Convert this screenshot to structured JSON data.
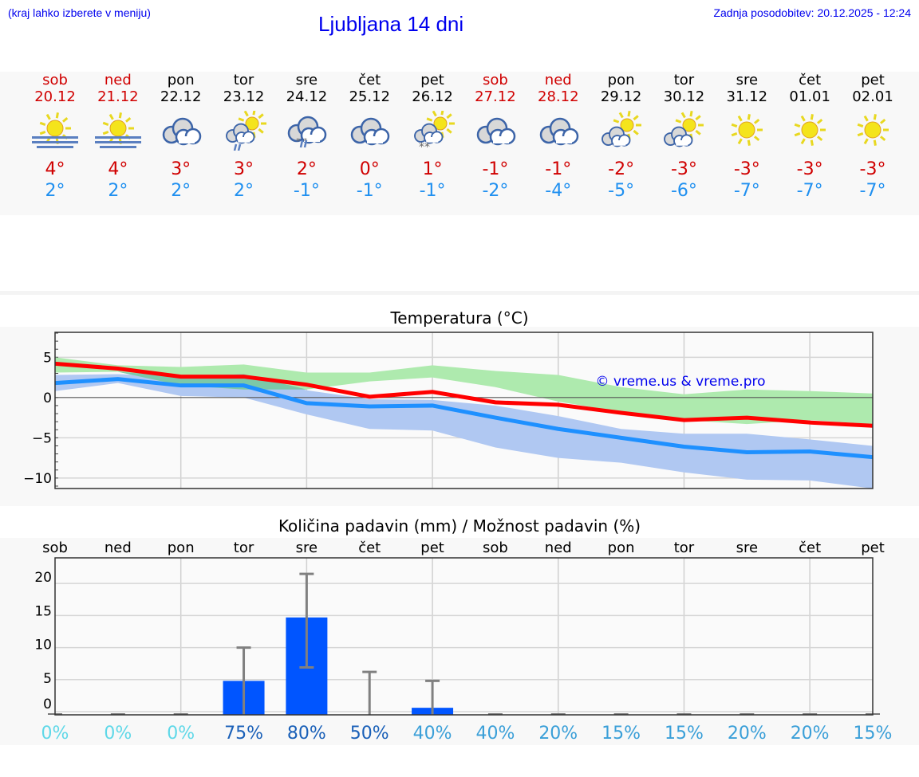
{
  "header": {
    "hint": "(kraj lahko izberete v meniju)",
    "title": "Ljubljana 14 dni",
    "updated": "Zadnja posodobitev: 20.12.2025 - 12:24"
  },
  "days": [
    {
      "name": "sob",
      "date": "20.12",
      "weekend": true,
      "icon": "sun-fog",
      "max": "4°",
      "min": "2°"
    },
    {
      "name": "ned",
      "date": "21.12",
      "weekend": true,
      "icon": "sun-fog",
      "max": "4°",
      "min": "2°"
    },
    {
      "name": "pon",
      "date": "22.12",
      "weekend": false,
      "icon": "cloudy",
      "max": "3°",
      "min": "2°"
    },
    {
      "name": "tor",
      "date": "23.12",
      "weekend": false,
      "icon": "sun-cloud-rain",
      "max": "3°",
      "min": "2°"
    },
    {
      "name": "sre",
      "date": "24.12",
      "weekend": false,
      "icon": "cloud-sleet",
      "max": "2°",
      "min": "-1°"
    },
    {
      "name": "čet",
      "date": "25.12",
      "weekend": false,
      "icon": "cloudy",
      "max": "0°",
      "min": "-1°"
    },
    {
      "name": "pet",
      "date": "26.12",
      "weekend": false,
      "icon": "sun-cloud-snow",
      "max": "1°",
      "min": "-1°"
    },
    {
      "name": "sob",
      "date": "27.12",
      "weekend": true,
      "icon": "cloudy",
      "max": "-1°",
      "min": "-2°"
    },
    {
      "name": "ned",
      "date": "28.12",
      "weekend": true,
      "icon": "cloudy",
      "max": "-1°",
      "min": "-4°"
    },
    {
      "name": "pon",
      "date": "29.12",
      "weekend": false,
      "icon": "sun-cloud",
      "max": "-2°",
      "min": "-5°"
    },
    {
      "name": "tor",
      "date": "30.12",
      "weekend": false,
      "icon": "sun-cloud",
      "max": "-3°",
      "min": "-6°"
    },
    {
      "name": "sre",
      "date": "31.12",
      "weekend": false,
      "icon": "sun",
      "max": "-3°",
      "min": "-7°"
    },
    {
      "name": "čet",
      "date": "01.01",
      "weekend": false,
      "icon": "sun",
      "max": "-3°",
      "min": "-7°"
    },
    {
      "name": "pet",
      "date": "02.01",
      "weekend": false,
      "icon": "sun",
      "max": "-3°",
      "min": "-7°"
    }
  ],
  "colors": {
    "max": "#ff0000",
    "min": "#1e90ff",
    "max_band": "#aeeaae",
    "min_band": "#b0c8f2",
    "overlap": "#7cc8a8",
    "bar": "#0055ff",
    "err": "#808080",
    "pct_low": "#5fd8e8",
    "pct_high": "#1a60b8",
    "pct_mid": "#3a9fd8"
  },
  "chart_data": [
    {
      "type": "line",
      "title": "Temperatura (°C)",
      "watermark": "© vreme.us & vreme.pro",
      "ylim": [
        -11.3,
        8.1
      ],
      "yticks": [
        5,
        0,
        -5,
        -10
      ],
      "ytick_labels": [
        "5",
        "0",
        "−5",
        "−10"
      ],
      "grid": true,
      "series": [
        {
          "role": "max",
          "values": [
            4.2,
            3.6,
            2.6,
            2.6,
            1.6,
            0.1,
            0.7,
            -0.6,
            -0.9,
            -1.9,
            -2.8,
            -2.5,
            -3.1,
            -3.5
          ]
        },
        {
          "role": "min",
          "values": [
            1.8,
            2.3,
            1.5,
            1.5,
            -0.7,
            -1.1,
            -1.0,
            -2.5,
            -3.9,
            -5.0,
            -6.1,
            -6.8,
            -6.7,
            -7.4
          ]
        },
        {
          "role": "max-range",
          "upper": [
            5.0,
            4.0,
            3.8,
            4.1,
            3.1,
            3.1,
            4.0,
            3.3,
            2.8,
            1.3,
            0.4,
            1.0,
            0.8,
            0.5
          ],
          "lower": [
            3.1,
            3.2,
            1.5,
            1.0,
            1.0,
            2.0,
            2.5,
            1.3,
            -0.5,
            -1.8,
            -2.8,
            -3.3,
            -2.8,
            -3.3
          ]
        },
        {
          "role": "min-range",
          "upper": [
            2.8,
            2.9,
            2.6,
            2.9,
            0.9,
            -0.2,
            -0.3,
            -1.0,
            -2.3,
            -3.9,
            -4.5,
            -4.5,
            -5.2,
            -6.0
          ],
          "lower": [
            0.8,
            1.8,
            0.2,
            0.0,
            -2.1,
            -3.9,
            -4.1,
            -6.2,
            -7.5,
            -8.1,
            -9.3,
            -10.2,
            -10.3,
            -11.3
          ]
        }
      ]
    },
    {
      "type": "bar",
      "title": "Količina padavin (mm) / Možnost padavin (%)",
      "ylim": [
        -0.5,
        24
      ],
      "yticks": [
        0,
        5,
        10,
        15,
        20
      ],
      "ytick_labels": [
        "0",
        "5",
        "10",
        "15",
        "20"
      ],
      "grid": true,
      "categories": [
        "sob",
        "ned",
        "pon",
        "tor",
        "sre",
        "čet",
        "pet",
        "sob",
        "ned",
        "pon",
        "tor",
        "sre",
        "čet",
        "pet"
      ],
      "values": [
        0,
        0,
        0,
        4.8,
        14.7,
        0,
        0.6,
        0,
        0,
        0,
        0,
        0,
        0,
        0
      ],
      "err_low": [
        0,
        0,
        0,
        0,
        6.9,
        0,
        0,
        0,
        0,
        0,
        0,
        0,
        0,
        0
      ],
      "err_high": [
        0,
        0,
        0,
        10,
        21.5,
        6.2,
        4.8,
        0,
        0,
        0,
        0,
        0,
        0,
        0
      ],
      "probability": [
        "0%",
        "0%",
        "0%",
        "75%",
        "80%",
        "50%",
        "40%",
        "40%",
        "20%",
        "15%",
        "15%",
        "20%",
        "20%",
        "15%"
      ]
    }
  ]
}
